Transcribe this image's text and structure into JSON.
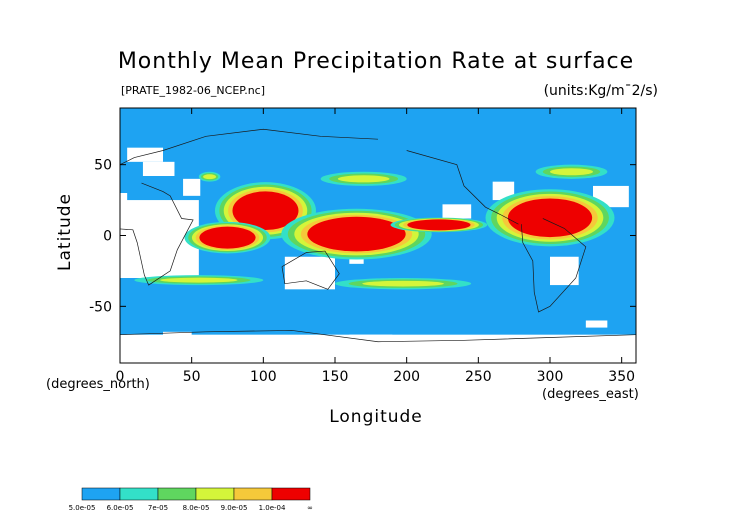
{
  "chart_data": {
    "type": "heatmap",
    "title": "Monthly Mean Precipitation Rate at surface",
    "source_file": "[PRATE_1982-06_NCEP.nc]",
    "units": "(units:Kg/m¯2/s)",
    "xlabel": "Longitude",
    "ylabel": "Latitude",
    "x_units": "(degrees_east)",
    "y_units": "(degrees_north)",
    "xlim": [
      0,
      360
    ],
    "ylim": [
      -90,
      90
    ],
    "x_ticks": [
      0,
      50,
      100,
      150,
      200,
      250,
      300,
      350
    ],
    "y_ticks": [
      -50,
      0,
      50
    ],
    "grid": false,
    "legend": {
      "placement": "bottom-left",
      "bins": [
        {
          "label": "5.0e-05",
          "color": "#1ea3f2"
        },
        {
          "label": "6.0e-05",
          "color": "#33e0c8"
        },
        {
          "label": "7e-05",
          "color": "#5fd65f"
        },
        {
          "label": "8.0e-05",
          "color": "#d4f53a"
        },
        {
          "label": "9.0e-05",
          "color": "#f5c93a"
        },
        {
          "label": "1.0e-04",
          "color": "#ee0000"
        },
        {
          "label": "∞",
          "color": null
        }
      ]
    },
    "heavy_rain_regions": [
      {
        "lon": [
          78,
          125
        ],
        "lat": [
          5,
          30
        ],
        "level": "1.0e-04"
      },
      {
        "lon": [
          130,
          200
        ],
        "lat": [
          -10,
          12
        ],
        "level": "1.0e-04"
      },
      {
        "lon": [
          200,
          245
        ],
        "lat": [
          5,
          10
        ],
        "level": "1.0e-04"
      },
      {
        "lon": [
          270,
          330
        ],
        "lat": [
          0,
          25
        ],
        "level": "1.0e-04"
      },
      {
        "lon": [
          55,
          95
        ],
        "lat": [
          -8,
          5
        ],
        "level": "1.0e-04"
      }
    ],
    "no_data_regions": [
      {
        "lon": [
          0,
          55
        ],
        "lat": [
          -30,
          25
        ],
        "description": "Africa / Arabia"
      },
      {
        "lon": [
          115,
          150
        ],
        "lat": [
          -38,
          -15
        ],
        "description": "Australia"
      },
      {
        "lon": [
          0,
          360
        ],
        "lat": [
          -90,
          -70
        ],
        "description": "Antarctica"
      }
    ]
  }
}
